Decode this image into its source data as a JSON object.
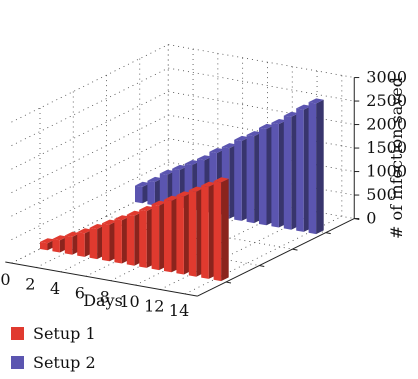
{
  "chart_data": {
    "type": "bar",
    "style": "3d",
    "xlabel": "Days",
    "zlabel": "# of infection saved",
    "x": [
      0,
      1,
      2,
      3,
      4,
      5,
      6,
      7,
      8,
      9,
      10,
      11,
      12,
      13,
      14
    ],
    "x_ticks": [
      "0",
      "2",
      "4",
      "6",
      "8",
      "10",
      "12",
      "14"
    ],
    "x_tick_values": [
      0,
      2,
      4,
      6,
      8,
      10,
      12,
      14
    ],
    "z_ticks": [
      "0",
      "500",
      "1000",
      "1500",
      "2000",
      "2500",
      "3000"
    ],
    "z_tick_values": [
      0,
      500,
      1000,
      1500,
      2000,
      2500,
      3000
    ],
    "zlim": [
      0,
      3000
    ],
    "grid": true,
    "legend_position": "bottom-left",
    "series": [
      {
        "name": "Setup 1",
        "color": "#e03a2f",
        "values": [
          150,
          260,
          380,
          500,
          640,
          780,
          920,
          1060,
          1210,
          1370,
          1520,
          1660,
          1810,
          1960,
          2100
        ]
      },
      {
        "name": "Setup 2",
        "color": "#5b55b0",
        "values": [
          350,
          500,
          700,
          850,
          1000,
          1150,
          1350,
          1500,
          1700,
          1850,
          2050,
          2200,
          2400,
          2600,
          2780
        ]
      }
    ]
  }
}
